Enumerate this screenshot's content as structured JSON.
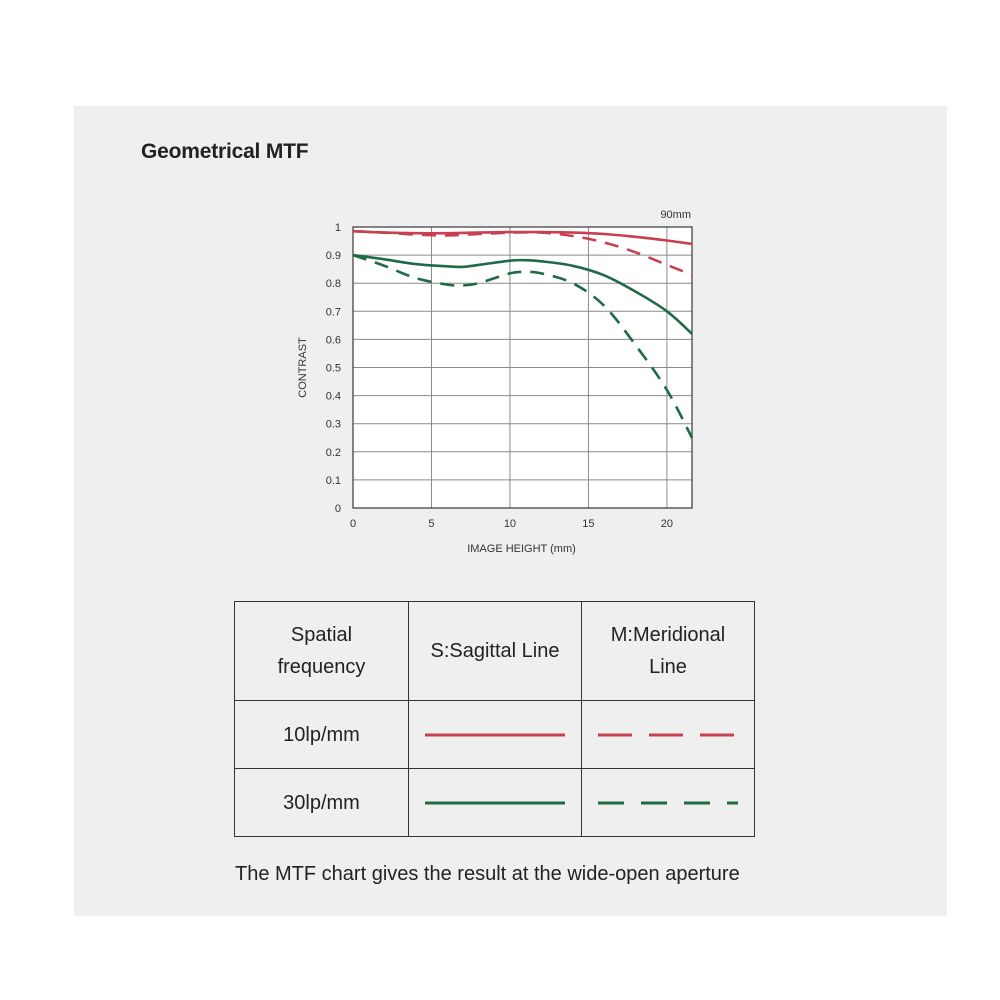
{
  "title": "Geometrical MTF",
  "chart_data": {
    "type": "line",
    "annotation": "90mm",
    "xlabel": "IMAGE HEIGHT (mm)",
    "ylabel": "CONTRAST",
    "xlim": [
      0,
      21.6
    ],
    "ylim": [
      0,
      1
    ],
    "xticks": [
      0,
      5,
      10,
      15,
      20
    ],
    "yticks": [
      0,
      0.1,
      0.2,
      0.3,
      0.4,
      0.5,
      0.6,
      0.7,
      0.8,
      0.9,
      1
    ],
    "ytick_labels": [
      "0",
      "0.1",
      "0.2",
      "0.3",
      "0.4",
      "0.5",
      "0.6",
      "0.7",
      "0.8",
      "0.9",
      "1"
    ],
    "grid": true,
    "series": [
      {
        "style": "solid",
        "color": "#c8404f",
        "x": [
          0,
          2,
          4,
          6,
          8,
          10,
          12,
          14,
          16,
          18,
          20,
          21.6
        ],
        "y": [
          0.985,
          0.98,
          0.978,
          0.978,
          0.98,
          0.982,
          0.982,
          0.98,
          0.975,
          0.965,
          0.952,
          0.94
        ]
      },
      {
        "style": "dashed",
        "color": "#c8404f",
        "x": [
          0,
          2,
          4,
          6,
          8,
          10,
          12,
          14,
          16,
          18,
          20,
          21.6
        ],
        "y": [
          0.985,
          0.98,
          0.973,
          0.97,
          0.975,
          0.98,
          0.98,
          0.968,
          0.945,
          0.91,
          0.865,
          0.83
        ]
      },
      {
        "style": "solid",
        "color": "#1e6b45",
        "x": [
          0,
          2,
          4,
          6,
          7,
          8,
          10,
          11,
          12,
          14,
          16,
          18,
          20,
          21.6
        ],
        "y": [
          0.9,
          0.885,
          0.868,
          0.86,
          0.858,
          0.865,
          0.88,
          0.882,
          0.878,
          0.862,
          0.828,
          0.77,
          0.7,
          0.62
        ]
      },
      {
        "style": "dashed",
        "color": "#1e6b45",
        "x": [
          0,
          2,
          4,
          6,
          7,
          8,
          10,
          11,
          12,
          14,
          16,
          18,
          20,
          21.6
        ],
        "y": [
          0.9,
          0.862,
          0.818,
          0.795,
          0.792,
          0.8,
          0.835,
          0.84,
          0.835,
          0.8,
          0.72,
          0.58,
          0.42,
          0.25
        ]
      }
    ]
  },
  "legend_table": {
    "header": {
      "col1": [
        "Spatial",
        "frequency"
      ],
      "col2": "S:Sagittal Line",
      "col3": [
        "M:Meridional",
        "Line"
      ]
    },
    "rows": [
      {
        "label": "10lp/mm",
        "color": "#c8404f"
      },
      {
        "label": "30lp/mm",
        "color": "#1e6b45"
      }
    ]
  },
  "caption": "The MTF chart gives the result at the wide-open aperture"
}
